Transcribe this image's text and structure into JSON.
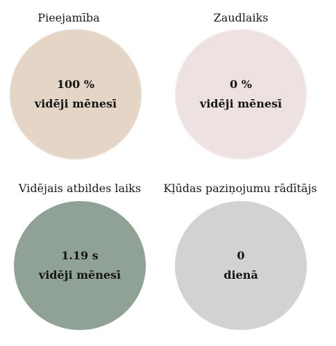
{
  "tiles": [
    {
      "title": "Pieejamība",
      "value": "100 %",
      "period": "vidēji mēnesī",
      "color": "#e4d5c7"
    },
    {
      "title": "Zaudlaiks",
      "value": "0 %",
      "period": "vidēji mēnesī",
      "color": "#ede2e1"
    },
    {
      "title": "Vidējais atbildes laiks",
      "value": "1.19 s",
      "period": "vidēji mēnesī",
      "color": "#8fa295"
    },
    {
      "title": "Kļūdas paziņojumu rādītājs",
      "value": "0",
      "period": "dienā",
      "color": "#d3d2d2"
    }
  ]
}
